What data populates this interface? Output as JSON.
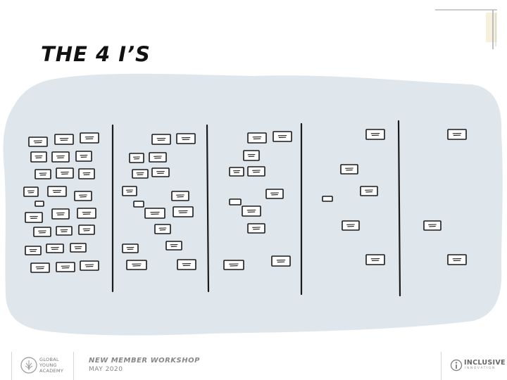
{
  "slide": {
    "title": "THE 4 I’S"
  },
  "footer": {
    "org_line1": "GLOBAL",
    "org_line2": "YOUNG",
    "org_line3": "ACADEMY",
    "workshop_title": "NEW MEMBER WORKSHOP",
    "workshop_date": "MAY 2020",
    "partner_name": "INCLUSIVE",
    "partner_sub": "INNOVATION"
  },
  "board": {
    "cloud_color": "#dfe7ec",
    "line_color": "#1a1a1a",
    "note_color": "#ffffff",
    "columns": 5
  }
}
